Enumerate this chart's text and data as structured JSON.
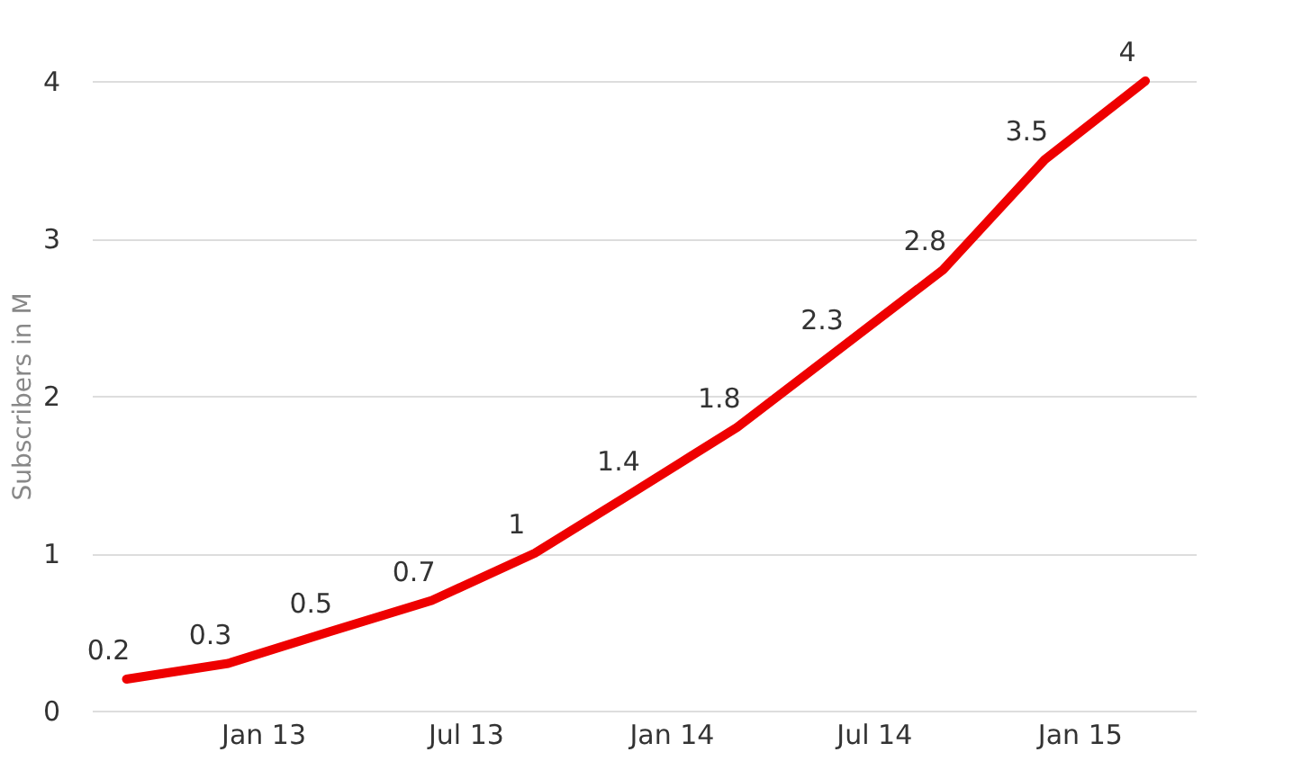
{
  "chart_data": {
    "type": "line",
    "ylabel": "Subscribers in M",
    "x": [
      "2012-09-01",
      "2012-12-01",
      "2013-03-01",
      "2013-06-01",
      "2013-09-01",
      "2013-12-01",
      "2014-03-01",
      "2014-06-01",
      "2014-09-01",
      "2014-12-01",
      "2015-03-01"
    ],
    "series": [
      {
        "color": "#ee0000",
        "values": [
          0.2,
          0.3,
          0.5,
          0.7,
          1,
          1.4,
          1.8,
          2.3,
          2.8,
          3.5,
          4
        ]
      }
    ],
    "data_labels": true,
    "xlim": [
      "2012-08-01",
      "2015-04-15"
    ],
    "xticks": [
      {
        "value": "2013-01-01",
        "label": "Jan 13"
      },
      {
        "value": "2013-07-01",
        "label": "Jul 13"
      },
      {
        "value": "2014-01-01",
        "label": "Jan 14"
      },
      {
        "value": "2014-07-01",
        "label": "Jul 14"
      },
      {
        "value": "2015-01-01",
        "label": "Jan 15"
      }
    ],
    "ylim": [
      0,
      4
    ],
    "yticks": [
      0,
      1,
      2,
      3,
      4
    ],
    "grid": "y",
    "marker": "none",
    "line_style": "solid"
  }
}
